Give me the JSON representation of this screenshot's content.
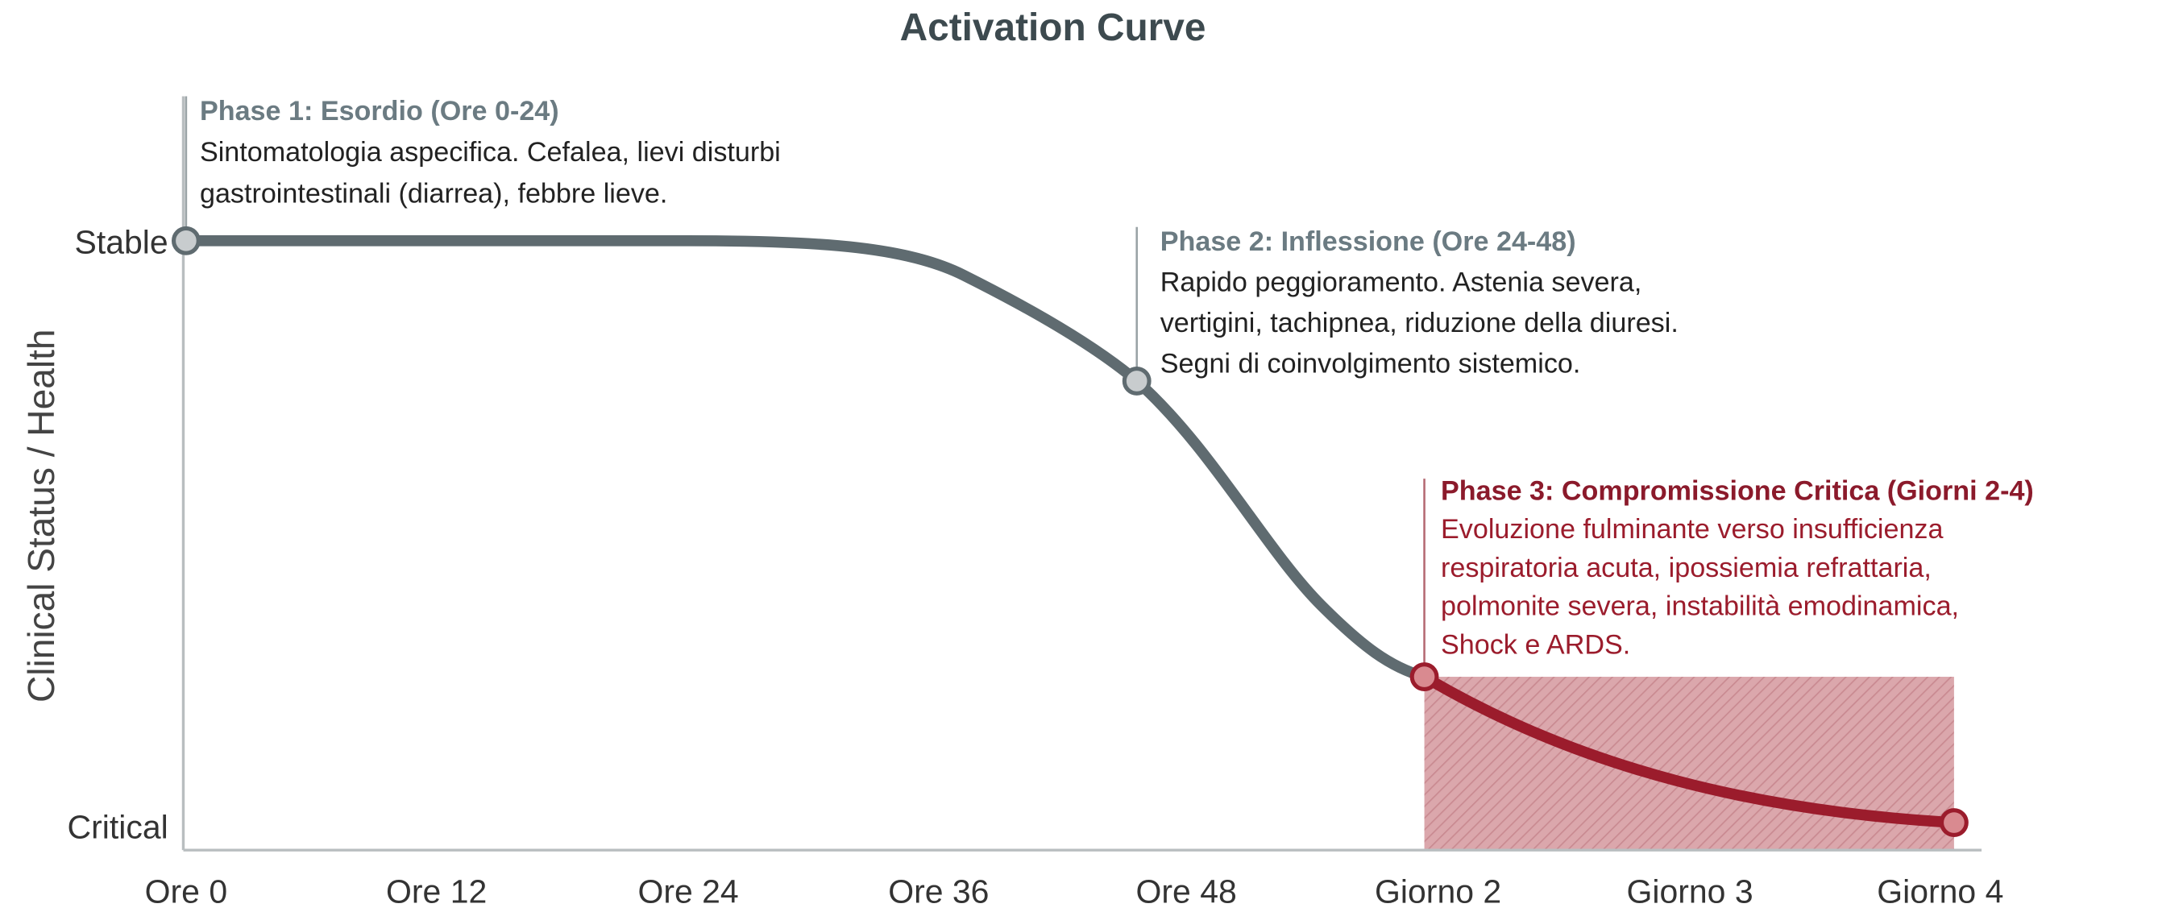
{
  "title": "Activation Curve",
  "y_axis": {
    "label": "Clinical Status / Health",
    "top": "Stable",
    "bottom": "Critical"
  },
  "x_axis": {
    "labels": [
      "Ore 0",
      "Ore 12",
      "Ore 24",
      "Ore 36",
      "Ore 48",
      "Giorno 2",
      "Giorno 3",
      "Giorno 4"
    ]
  },
  "phases": [
    {
      "title": "Phase 1: Esordio (Ore 0-24)",
      "lines": [
        "Sintomatologia aspecifica. Cefalea, lievi disturbi",
        "gastrointestinali (diarrea), febbre lieve."
      ]
    },
    {
      "title": "Phase 2: Inflessione (Ore 24-48)",
      "lines": [
        "Rapido peggioramento. Astenia severa,",
        "vertigini, tachipnea, riduzione della diuresi.",
        "Segni di coinvolgimento sistemico."
      ]
    },
    {
      "title": "Phase 3: Compromissione Critica (Giorni 2-4)",
      "lines": [
        "Evoluzione fulminante verso insufficienza",
        "respiratoria acuta, ipossiemia refrattaria,",
        "polmonite severa, instabilità emodinamica,",
        "Shock e ARDS."
      ]
    }
  ]
}
